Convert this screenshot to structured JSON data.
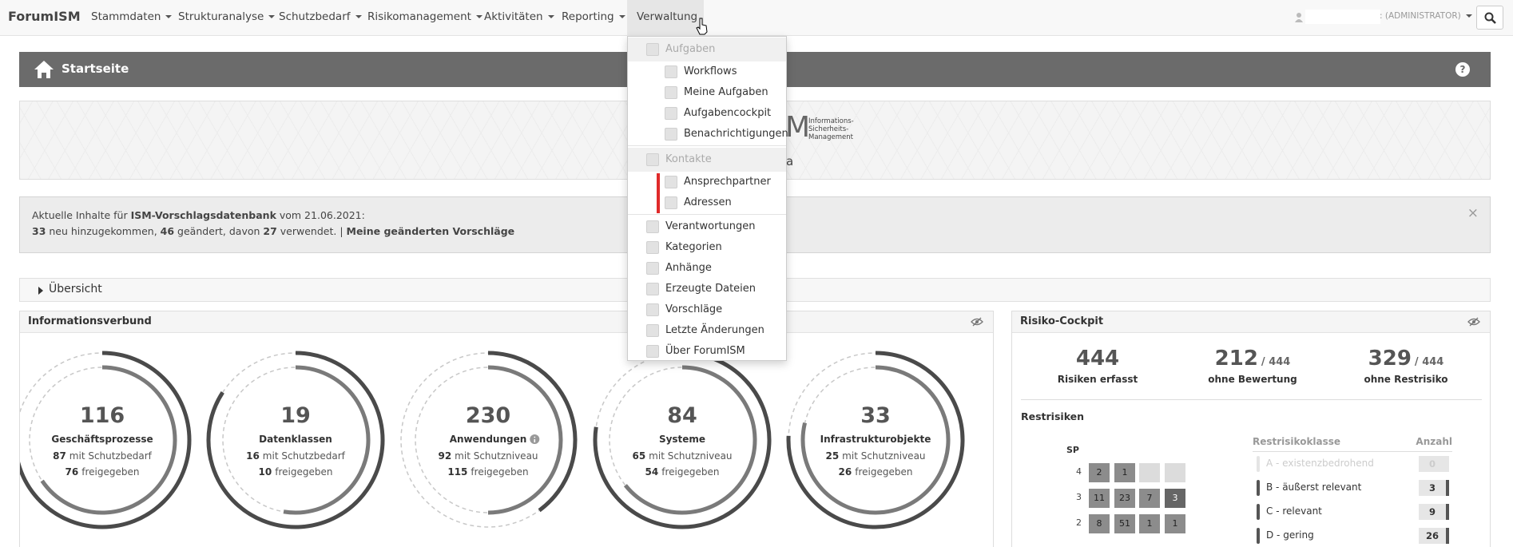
{
  "navbar": {
    "brand": "ForumISM",
    "menu": [
      "Stammdaten",
      "Strukturanalyse",
      "Schutzbedarf",
      "Risikomanagement",
      "Aktivitäten",
      "Reporting",
      "Verwaltung"
    ],
    "user_role": ": (ADMINISTRATOR)"
  },
  "dropdown": {
    "sections": [
      {
        "header": "Aufgaben",
        "items": [
          "Workflows",
          "Meine Aufgaben",
          "Aufgabencockpit",
          "Benachrichtigungen"
        ]
      },
      {
        "header": "Kontakte",
        "items": [
          "Ansprechpartner",
          "Adressen"
        ]
      }
    ],
    "items": [
      "Verantwortungen",
      "Kategorien",
      "Anhänge",
      "Erzeugte Dateien",
      "Vorschläge",
      "Letzte Änderungen",
      "Über ForumISM"
    ]
  },
  "page_header": {
    "title": "Startseite",
    "help": "?"
  },
  "banner": {
    "logo_tail": "M",
    "logo_text": [
      "Informations-",
      "Sicherheits-",
      "Management"
    ],
    "subtitle_tail": "a"
  },
  "alert": {
    "line1": [
      "Aktuelle Inhalte für ",
      "ISM-Vorschlagsdatenbank",
      " vom 21.06.2021:"
    ],
    "line2": [
      "33",
      " neu hinzugekommen, ",
      "46",
      " geändert, davon ",
      "27",
      " verwendet. | ",
      "Meine geänderten Vorschläge"
    ],
    "close": "×"
  },
  "overview": {
    "title": "Übersicht"
  },
  "informationsverbund": {
    "title": "Informationsverbund",
    "gauges": [
      {
        "total": 116,
        "label": "Geschäftsprozesse",
        "count1": 87,
        "text1": "mit Schutzbedarf",
        "count2": 76,
        "text2": "freigegeben"
      },
      {
        "total": 19,
        "label": "Datenklassen",
        "count1": 16,
        "text1": "mit Schutzbedarf",
        "count2": 10,
        "text2": "freigegeben"
      },
      {
        "total": 230,
        "label": "Anwendungen",
        "count1": 92,
        "text1": "mit Schutzniveau",
        "count2": 115,
        "text2": "freigegeben"
      },
      {
        "total": 84,
        "label": "Systeme",
        "count1": 65,
        "text1": "mit Schutzniveau",
        "count2": 54,
        "text2": "freigegeben"
      },
      {
        "total": 33,
        "label": "Infrastrukturobjekte",
        "count1": 25,
        "text1": "mit Schutzniveau",
        "count2": 26,
        "text2": "freigegeben"
      }
    ]
  },
  "risiko_cockpit": {
    "title": "Risiko-Cockpit",
    "stats": [
      {
        "value": 444,
        "label": "Risiken erfasst"
      },
      {
        "value": 212,
        "of": "/ 444",
        "label": "ohne Bewertung"
      },
      {
        "value": 329,
        "of": "/ 444",
        "label": "ohne Restrisiko"
      }
    ],
    "restrisiken": {
      "title": "Restrisiken",
      "axis_label": "SP",
      "rows": [
        {
          "label": 4,
          "cells": [
            2,
            1,
            null,
            null
          ]
        },
        {
          "label": 3,
          "cells": [
            11,
            23,
            7,
            3
          ]
        },
        {
          "label": 2,
          "cells": [
            8,
            51,
            1,
            1
          ]
        }
      ],
      "table": {
        "headers": [
          "Restrisikoklasse",
          "Anzahl"
        ],
        "rows": [
          [
            "A - existenzbedrohend",
            0
          ],
          [
            "B - äußerst relevant",
            3
          ],
          [
            "C - relevant",
            9
          ],
          [
            "D - gering",
            26
          ]
        ]
      }
    }
  }
}
